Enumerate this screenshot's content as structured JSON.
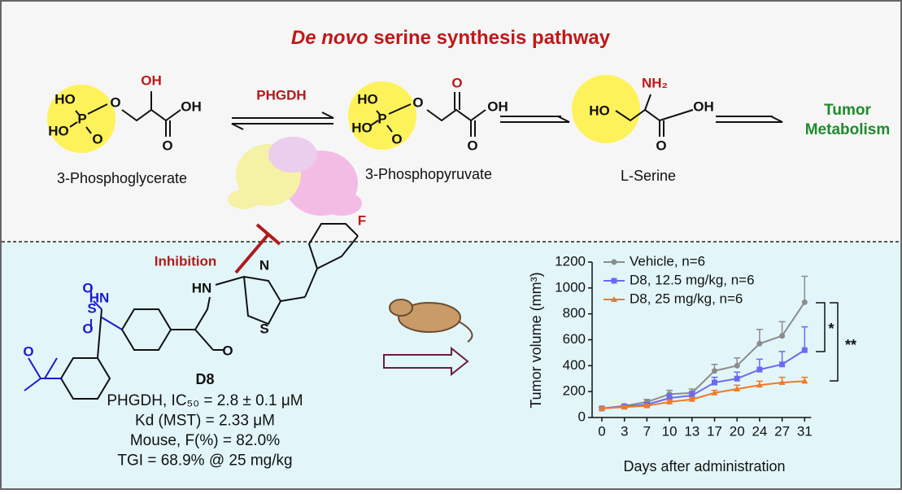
{
  "header": {
    "title_italic": "De novo",
    "title_rest": "serine synthesis pathway"
  },
  "enzyme": "PHGDH",
  "outcome": [
    "Tumor",
    "Metabolism"
  ],
  "inhibition": "Inhibition",
  "molecules": [
    {
      "name": "3-Phosphoglycerate",
      "atoms": [
        "HO",
        "HO",
        "P",
        "O",
        "O",
        "OH",
        "OH",
        "O"
      ]
    },
    {
      "name": "3-Phosphopyruvate",
      "atoms": [
        "HO",
        "HO",
        "P",
        "O",
        "O",
        "O",
        "OH",
        "O"
      ]
    },
    {
      "name": "L-Serine",
      "atoms": [
        "HO",
        "NH₂",
        "OH",
        "O"
      ]
    }
  ],
  "compound": {
    "name": "D8",
    "atoms": [
      "O",
      "HN",
      "S",
      "O",
      "O",
      "HN",
      "O",
      "N",
      "S",
      "F"
    ],
    "properties": [
      "PHGDH, IC₅₀ = 2.8 ± 0.1 μM",
      "Kd (MST) = 2.33 μM",
      "Mouse, F(%) = 82.0%",
      "TGI = 68.9% @ 25 mg/kg"
    ]
  },
  "chart_data": {
    "type": "line",
    "x_label": "Days after administration",
    "y_label": "Tumor volume (mm³)",
    "categories": [
      "0",
      "3",
      "7",
      "10",
      "13",
      "17",
      "20",
      "24",
      "27",
      "31"
    ],
    "ylim": [
      0,
      1200
    ],
    "yticks": [
      0,
      200,
      400,
      600,
      800,
      1000,
      1200
    ],
    "series": [
      {
        "name": "Vehicle, n=6",
        "color": "#8c8c8c",
        "marker": "circle",
        "values": [
          70,
          90,
          120,
          180,
          190,
          360,
          400,
          570,
          630,
          890
        ],
        "errors": [
          10,
          10,
          20,
          30,
          30,
          50,
          60,
          110,
          110,
          200
        ]
      },
      {
        "name": "D8, 12.5 mg/kg, n=6",
        "color": "#6a6af2",
        "marker": "square",
        "values": [
          70,
          85,
          100,
          150,
          170,
          270,
          300,
          370,
          410,
          520
        ],
        "errors": [
          10,
          10,
          15,
          30,
          30,
          40,
          50,
          80,
          100,
          180
        ]
      },
      {
        "name": "D8, 25 mg/kg, n=6",
        "color": "#f07a28",
        "marker": "triangle",
        "values": [
          70,
          80,
          90,
          120,
          140,
          190,
          220,
          250,
          270,
          280
        ],
        "errors": [
          10,
          10,
          10,
          15,
          15,
          20,
          30,
          30,
          40,
          30
        ]
      }
    ],
    "significance": [
      "*",
      "**"
    ]
  }
}
